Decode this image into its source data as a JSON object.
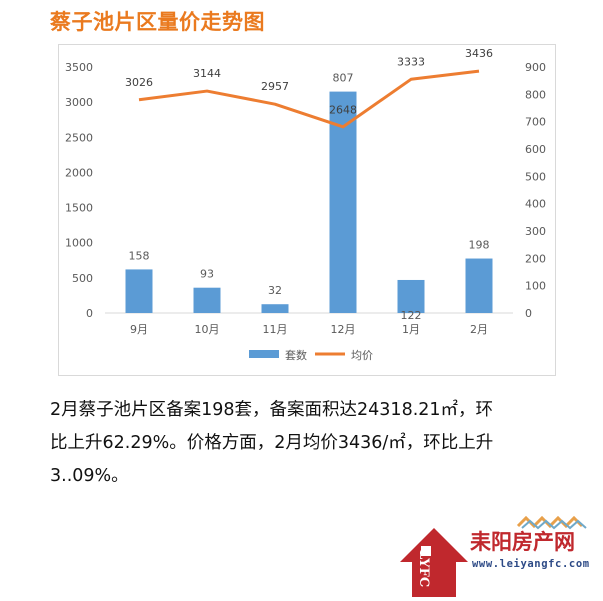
{
  "page": {
    "title": "蔡子池片区量价走势图",
    "summary_line1": "2月蔡子池片区备案198套，备案面积达24318.21㎡，环",
    "summary_line2": "比上升62.29%。价格方面，2月均价3436/㎡，环比上升",
    "summary_line3": "3..09%。"
  },
  "logo": {
    "name": "耒阳房产网",
    "url": "www.leiyangfc.com",
    "letters": "LYFC"
  },
  "colors": {
    "title": "#ea7a1f",
    "bar": "#5b9bd5",
    "line": "#ed7d31",
    "logo_red": "#c0282d"
  },
  "chart_data": {
    "type": "bar+line",
    "categories": [
      "9月",
      "10月",
      "11月",
      "12月",
      "1月",
      "2月"
    ],
    "series": [
      {
        "name": "套数",
        "kind": "bar",
        "axis": "left",
        "values": [
          620,
          360,
          125,
          3150,
          470,
          775
        ],
        "labels": [
          "158",
          "93",
          "32",
          "807",
          "122",
          "198"
        ]
      },
      {
        "name": "均价",
        "kind": "line",
        "axis": "right",
        "values": [
          780,
          812,
          764,
          681,
          855,
          885
        ],
        "labels": [
          "3026",
          "3144",
          "2957",
          "2648",
          "3333",
          "3436"
        ]
      }
    ],
    "y_left": {
      "min": 0,
      "max": 3500,
      "step": 500,
      "ticks": [
        "0",
        "500",
        "1000",
        "1500",
        "2000",
        "2500",
        "3000",
        "3500"
      ]
    },
    "y_right": {
      "min": 0,
      "max": 900,
      "step": 100,
      "ticks": [
        "0",
        "100",
        "200",
        "300",
        "400",
        "500",
        "600",
        "700",
        "800",
        "900"
      ]
    },
    "grid": false,
    "legend": "bottom"
  }
}
